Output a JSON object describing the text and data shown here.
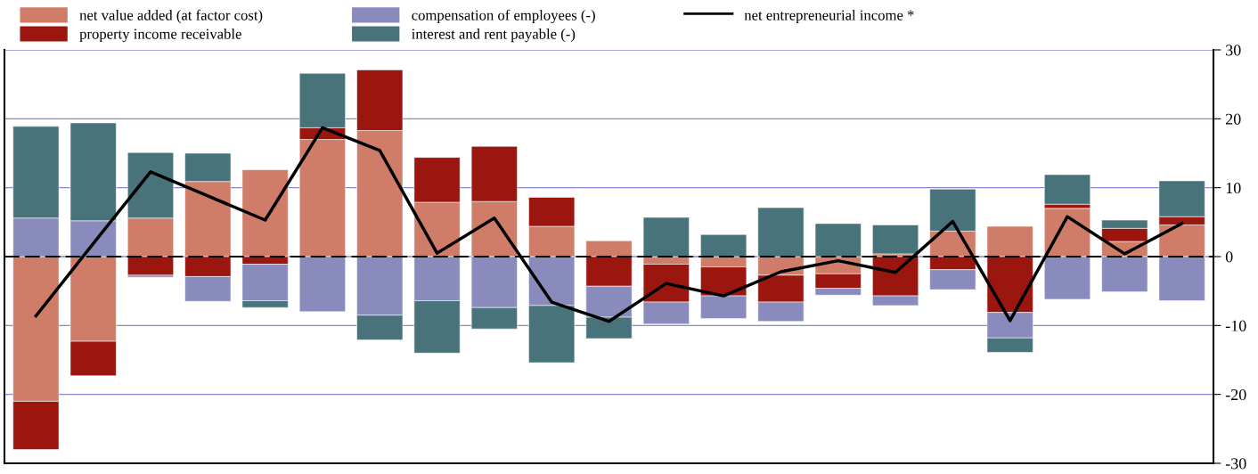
{
  "chart_data": {
    "type": "bar",
    "stacked": true,
    "categories": [
      null,
      null,
      null,
      null,
      null,
      null,
      null,
      null,
      null,
      null,
      null,
      null,
      null,
      null,
      null,
      null,
      null,
      null,
      null,
      null,
      null
    ],
    "series": [
      {
        "name": "net value added (at factor cost)",
        "color": "#cf7d69",
        "values": [
          -21.0,
          -12.3,
          5.6,
          10.9,
          12.6,
          17.0,
          18.3,
          7.9,
          8.0,
          4.4,
          2.3,
          -1.1,
          -1.5,
          -2.7,
          -2.5,
          0.4,
          3.7,
          4.4,
          7.0,
          2.2,
          4.6
        ]
      },
      {
        "name": "property income receivable",
        "color": "#9c1610",
        "values": [
          -7.0,
          -5.0,
          -2.7,
          -2.9,
          -1.1,
          1.7,
          8.8,
          6.5,
          8.0,
          4.2,
          -4.3,
          -5.5,
          -4.2,
          -3.9,
          -2.1,
          -5.7,
          -1.9,
          -8.1,
          0.6,
          1.9,
          1.2
        ]
      },
      {
        "name": "compensation of employees (-)",
        "color": "#8a8bbd",
        "values": [
          5.6,
          5.2,
          -0.3,
          -3.6,
          -5.3,
          -8.0,
          -8.5,
          -6.4,
          -7.4,
          -7.1,
          -4.5,
          -3.2,
          -3.3,
          -2.8,
          -1.0,
          -1.4,
          -2.9,
          -3.7,
          -6.2,
          -5.1,
          -6.4
        ]
      },
      {
        "name": "interest and rent payable (-)",
        "color": "#48737a",
        "values": [
          13.3,
          14.2,
          9.5,
          4.1,
          -1.0,
          7.9,
          -3.6,
          -7.6,
          -3.1,
          -8.3,
          -3.1,
          5.7,
          3.2,
          7.1,
          4.8,
          4.2,
          6.1,
          -2.1,
          4.3,
          1.2,
          5.2
        ]
      },
      {
        "name": "net entrepreneurial income *",
        "type": "line",
        "color": "#000000",
        "values": [
          -8.6,
          1.9,
          12.3,
          8.8,
          5.3,
          18.7,
          15.4,
          0.5,
          5.6,
          -6.6,
          -9.4,
          -3.9,
          -5.7,
          -2.2,
          -0.6,
          -2.3,
          5.1,
          -9.3,
          5.8,
          0.4,
          4.8
        ]
      }
    ],
    "ylim": [
      -30,
      30
    ],
    "yticks": [
      -30,
      -20,
      -10,
      0,
      10,
      20,
      30
    ],
    "ref_lines": [
      {
        "axis": "y",
        "value": 0,
        "color": "#000000",
        "line_style": "dashed"
      }
    ],
    "grid": "y",
    "legend": "top",
    "tick_labels": "y",
    "line_style": "solid",
    "marker": "none"
  }
}
